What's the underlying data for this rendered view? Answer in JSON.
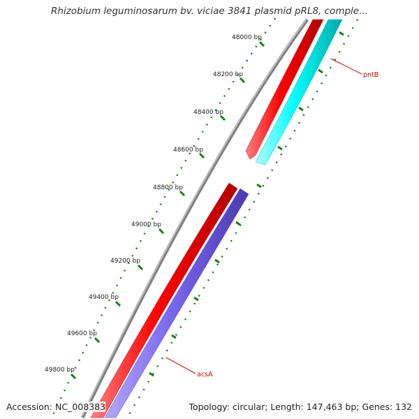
{
  "title": "Rhizobium leguminosarum bv. viciae 3841 plasmid pRL8, comple...",
  "footer": {
    "accession": "Accession: NC_008383",
    "summary": "Topology: circular; Length: 147,463 bp; Genes: 132"
  },
  "ruler": {
    "labels": [
      "48000 bp",
      "48200 bp",
      "48400 bp",
      "48600 bp",
      "48800 bp",
      "49000 bp",
      "49200 bp",
      "49400 bp",
      "49600 bp",
      "49800 bp"
    ],
    "tick_color": "#1a7a1a"
  },
  "genes": [
    {
      "name": "pntB",
      "label_color": "#cc0000",
      "track_colors": [
        "#ff0000",
        "#00ffff"
      ]
    },
    {
      "name": "acsA",
      "label_color": "#cc0000",
      "track_colors": [
        "#ff0000",
        "#7b68ee"
      ]
    }
  ],
  "colors": {
    "backbone": "#808080",
    "gene_forward": "#ff0000",
    "pntB_track": "#00ffff",
    "acsA_track": "#7b68ee",
    "ticks": "#1a7a1a"
  }
}
